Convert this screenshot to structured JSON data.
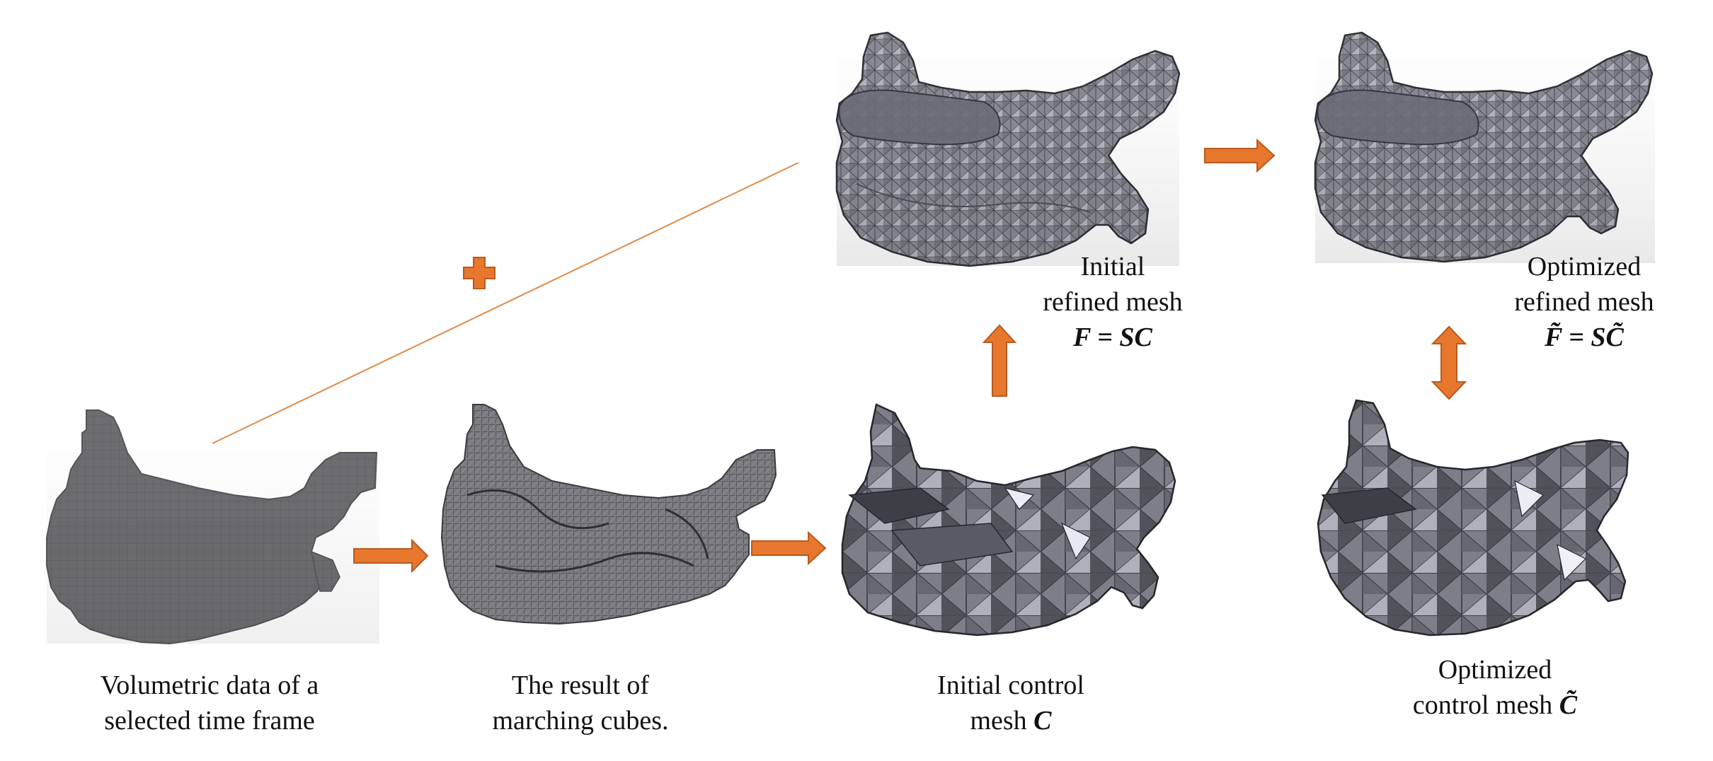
{
  "colors": {
    "arrow": "#E8772E",
    "connector_line": "#E08A4A",
    "mesh_fill": "#86868E",
    "mesh_dark": "#5A5A62",
    "mesh_light": "#E4E4EE",
    "voxel_fill": "#6E6E72",
    "edge": "#2C2C34"
  },
  "stages": {
    "volumetric": {
      "icon": "voxel-heart-shape",
      "caption_line1": "Volumetric data of a",
      "caption_line2": "selected time frame"
    },
    "marching": {
      "icon": "marching-cubes-shape",
      "caption_line1": "The result of",
      "caption_line2": "marching cubes."
    },
    "initial_control": {
      "icon": "coarse-mesh-shape",
      "caption_line1": "Initial control",
      "caption_line2": "mesh",
      "symbol": "C"
    },
    "initial_refined": {
      "icon": "refined-mesh-shape",
      "caption_line1": "Initial",
      "caption_line2": "refined mesh",
      "formula": "F = SC"
    },
    "optimized_refined": {
      "icon": "refined-mesh-shape",
      "caption_line1": "Optimized",
      "caption_line2": "refined mesh",
      "formula": "F̃ = SC̃"
    },
    "optimized_control": {
      "icon": "coarse-mesh-shape",
      "caption_line1": "Optimized",
      "caption_line2": "control mesh",
      "symbol": "C̃"
    }
  },
  "operators": {
    "plus_icon": "plus-icon",
    "arrow_icon": "arrow-icon",
    "double_arrow_icon": "double-arrow-icon"
  }
}
